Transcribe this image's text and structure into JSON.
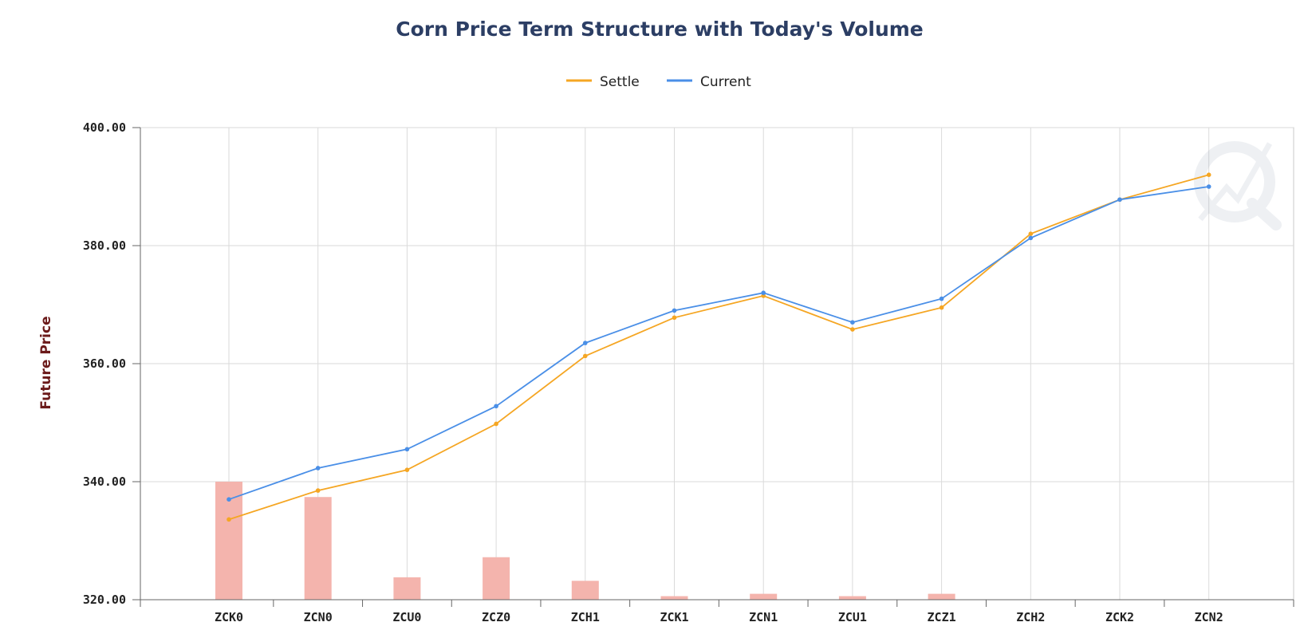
{
  "chart_data": {
    "type": "line",
    "title": "Corn Price Term Structure with Today's Volume",
    "ylabel": "Future Price",
    "xlabel": "",
    "categories": [
      "ZCK0",
      "ZCN0",
      "ZCU0",
      "ZCZ0",
      "ZCH1",
      "ZCK1",
      "ZCN1",
      "ZCU1",
      "ZCZ1",
      "ZCH2",
      "ZCK2",
      "ZCN2"
    ],
    "ylim": [
      320,
      400
    ],
    "yticks": [
      "320.00",
      "340.00",
      "360.00",
      "380.00",
      "400.00"
    ],
    "grid": true,
    "legend": "top-center",
    "series": [
      {
        "name": "Settle",
        "color": "#f5a623",
        "values": [
          333.6,
          338.5,
          342.0,
          349.8,
          361.3,
          367.8,
          371.5,
          365.8,
          369.5,
          382.0,
          387.8,
          392.0
        ]
      },
      {
        "name": "Current",
        "color": "#4a8fe7",
        "values": [
          337.0,
          342.3,
          345.5,
          352.8,
          363.5,
          369.0,
          372.0,
          367.0,
          371.0,
          381.3,
          387.8,
          390.0
        ]
      }
    ],
    "volume": {
      "color": "#f4b4ad",
      "values_relative": [
        1.0,
        0.87,
        0.19,
        0.36,
        0.16,
        0.03,
        0.05,
        0.03,
        0.05,
        0,
        0,
        0
      ]
    }
  }
}
